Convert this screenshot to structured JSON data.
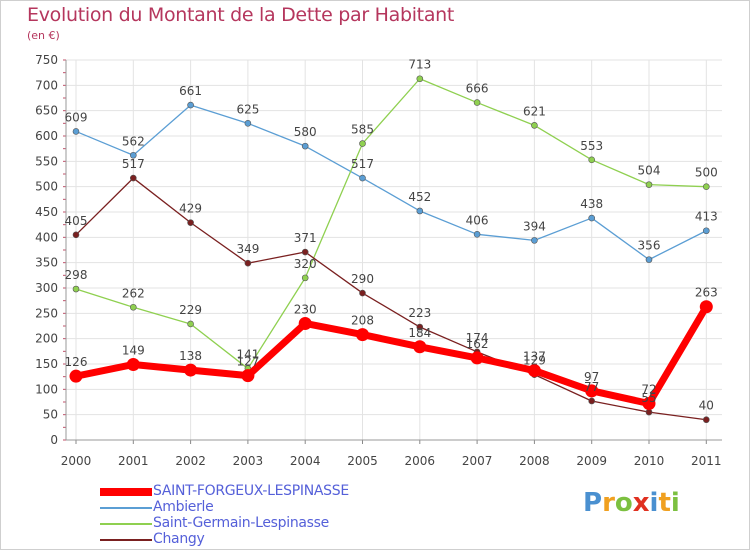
{
  "title": "Evolution du Montant de la Dette par Habitant",
  "subtitle": "(en €)",
  "logo": {
    "letters": [
      "P",
      "r",
      "o",
      "x",
      "i",
      "t",
      "i"
    ],
    "colors": [
      "#4a90d0",
      "#f0a020",
      "#7cc040",
      "#e03020",
      "#4a90d0",
      "#f0a020",
      "#7cc040"
    ]
  },
  "chart_data": {
    "type": "line",
    "title": "Evolution du Montant de la Dette par Habitant",
    "subtitle": "(en €)",
    "xlabel": "",
    "ylabel": "",
    "x": [
      "2000",
      "2001",
      "2002",
      "2003",
      "2004",
      "2005",
      "2006",
      "2007",
      "2008",
      "2009",
      "2010",
      "2011"
    ],
    "ylim": [
      0,
      750
    ],
    "yticks": [
      "0",
      "50",
      "100",
      "150",
      "200",
      "250",
      "300",
      "350",
      "400",
      "450",
      "500",
      "550",
      "600",
      "650",
      "700",
      "750"
    ],
    "grid": true,
    "legend_position": "bottom-left",
    "series": [
      {
        "name": "SAINT-FORGEUX-LESPINASSE",
        "color": "#ff0000",
        "emphasis": true,
        "values": [
          126,
          149,
          138,
          127,
          230,
          208,
          184,
          162,
          137,
          97,
          72,
          263
        ],
        "labels": [
          "126",
          "149",
          "138",
          "127",
          "230",
          "208",
          "184",
          "162",
          "137",
          "97",
          "72",
          "263"
        ]
      },
      {
        "name": "Ambierle",
        "color": "#5b9ed4",
        "values": [
          609,
          562,
          661,
          625,
          580,
          517,
          452,
          406,
          394,
          438,
          356,
          413
        ],
        "labels": [
          "609",
          "562",
          "661",
          "625",
          "580",
          "517",
          "452",
          "406",
          "394",
          "438",
          "356",
          "413"
        ]
      },
      {
        "name": "Saint-Germain-Lespinasse",
        "color": "#8fd050",
        "values": [
          298,
          262,
          229,
          141,
          320,
          585,
          713,
          666,
          621,
          553,
          504,
          500
        ],
        "labels": [
          "298",
          "262",
          "229",
          "141",
          "320",
          "585",
          "713",
          "666",
          "621",
          "553",
          "504",
          "500"
        ]
      },
      {
        "name": "Changy",
        "color": "#7a2020",
        "values": [
          405,
          517,
          429,
          349,
          371,
          290,
          223,
          174,
          129,
          77,
          55,
          40
        ],
        "labels": [
          "405",
          "517",
          "429",
          "349",
          "371",
          "290",
          "223",
          "174",
          "129",
          "77",
          "55",
          "40"
        ]
      }
    ]
  }
}
